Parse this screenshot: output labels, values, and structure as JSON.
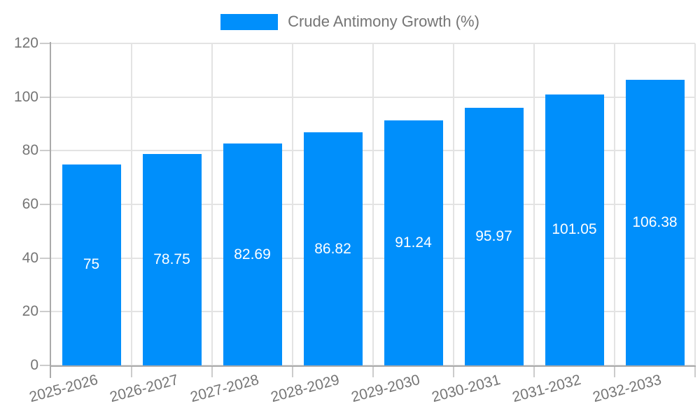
{
  "chart_data": {
    "type": "bar",
    "title": "",
    "legend_label": "Crude Antimony Growth (%)",
    "legend_position": "top",
    "categories": [
      "2025-2026",
      "2026-2027",
      "2027-2028",
      "2028-2029",
      "2029-2030",
      "2030-2031",
      "2031-2032",
      "2032-2033"
    ],
    "series": [
      {
        "name": "Crude Antimony Growth (%)",
        "values": [
          75,
          78.75,
          82.69,
          86.82,
          91.24,
          95.97,
          101.05,
          106.38
        ],
        "value_labels": [
          "75",
          "78.75",
          "82.69",
          "86.82",
          "91.24",
          "95.97",
          "101.05",
          "106.38"
        ]
      }
    ],
    "xlabel": "",
    "ylabel": "",
    "ylim": [
      0,
      120
    ],
    "yticks": [
      0,
      20,
      40,
      60,
      80,
      100,
      120
    ],
    "grid": true,
    "colors": {
      "bar": "#008FFB",
      "bar_label_text": "#ffffff",
      "axis_line": "#aaaaaa",
      "grid_line": "#e3e3e3",
      "tick_line": "#cccccc",
      "label_text": "#757575",
      "background": "#ffffff"
    }
  }
}
